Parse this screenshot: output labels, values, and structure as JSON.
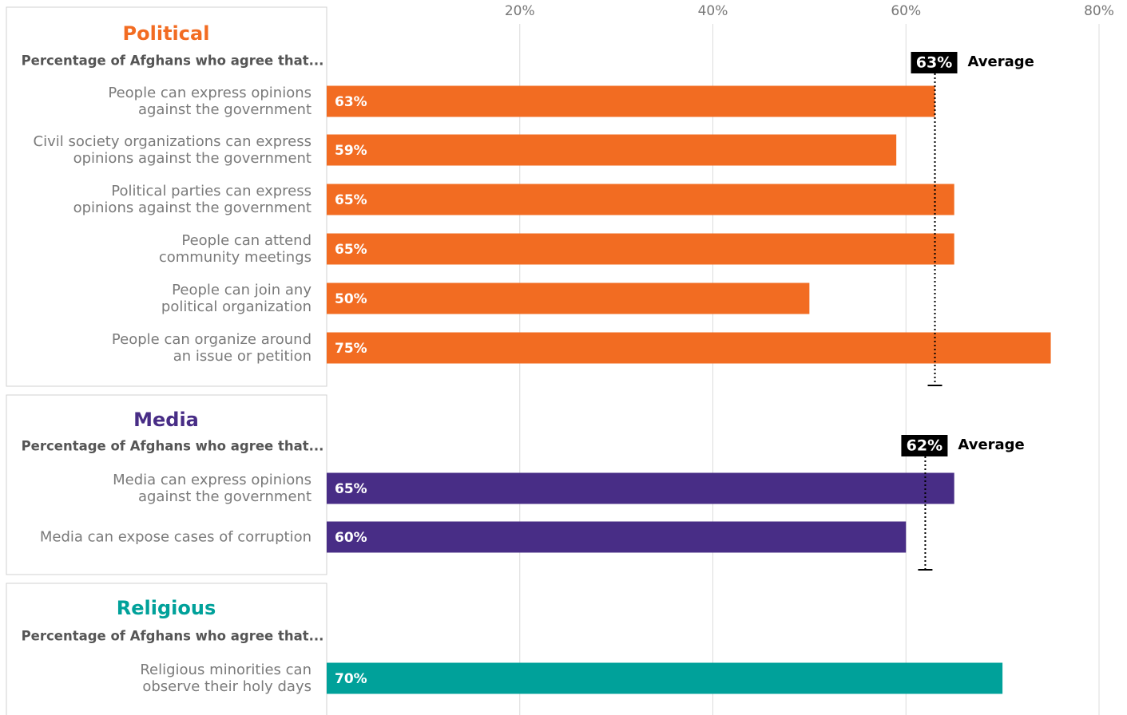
{
  "chart_data": [
    {
      "type": "bar",
      "title": "Political",
      "subtitle": "Percentage of Afghans who agree that...",
      "categories": [
        "People can express opinions\nagainst the government",
        "Civil society organizations can express\nopinions against the government",
        "Political parties can express\nopinions against the government",
        "People can attend\ncommunity meetings",
        "People can join any\npolitical organization",
        "People can organize around\nan issue or petition"
      ],
      "values": [
        63,
        59,
        65,
        65,
        50,
        75
      ],
      "value_labels": [
        "63%",
        "59%",
        "65%",
        "65%",
        "50%",
        "75%"
      ],
      "color": "#f26c22",
      "title_color": "#f26c22",
      "average": 63,
      "average_label": "63%",
      "average_text": "Average",
      "xlim": [
        0,
        80
      ],
      "xticks": [
        {
          "value": 20,
          "label": "20%"
        },
        {
          "value": 40,
          "label": "40%"
        },
        {
          "value": 60,
          "label": "60%"
        },
        {
          "value": 80,
          "label": "80%"
        }
      ],
      "grid": true
    },
    {
      "type": "bar",
      "title": "Media",
      "subtitle": "Percentage of Afghans who agree that...",
      "categories": [
        "Media can express opinions\nagainst the government",
        "Media can expose cases of corruption"
      ],
      "values": [
        65,
        60
      ],
      "value_labels": [
        "65%",
        "60%"
      ],
      "color": "#482d86",
      "title_color": "#482d86",
      "average": 62,
      "average_label": "62%",
      "average_text": "Average",
      "xlim": [
        0,
        80
      ]
    },
    {
      "type": "bar",
      "title": "Religious",
      "subtitle": "Percentage of Afghans who agree that...",
      "categories": [
        "Religious minorities can\nobserve their holy days"
      ],
      "values": [
        70
      ],
      "value_labels": [
        "70%"
      ],
      "color": "#00a19a",
      "title_color": "#00a19a",
      "xlim": [
        0,
        80
      ]
    }
  ]
}
